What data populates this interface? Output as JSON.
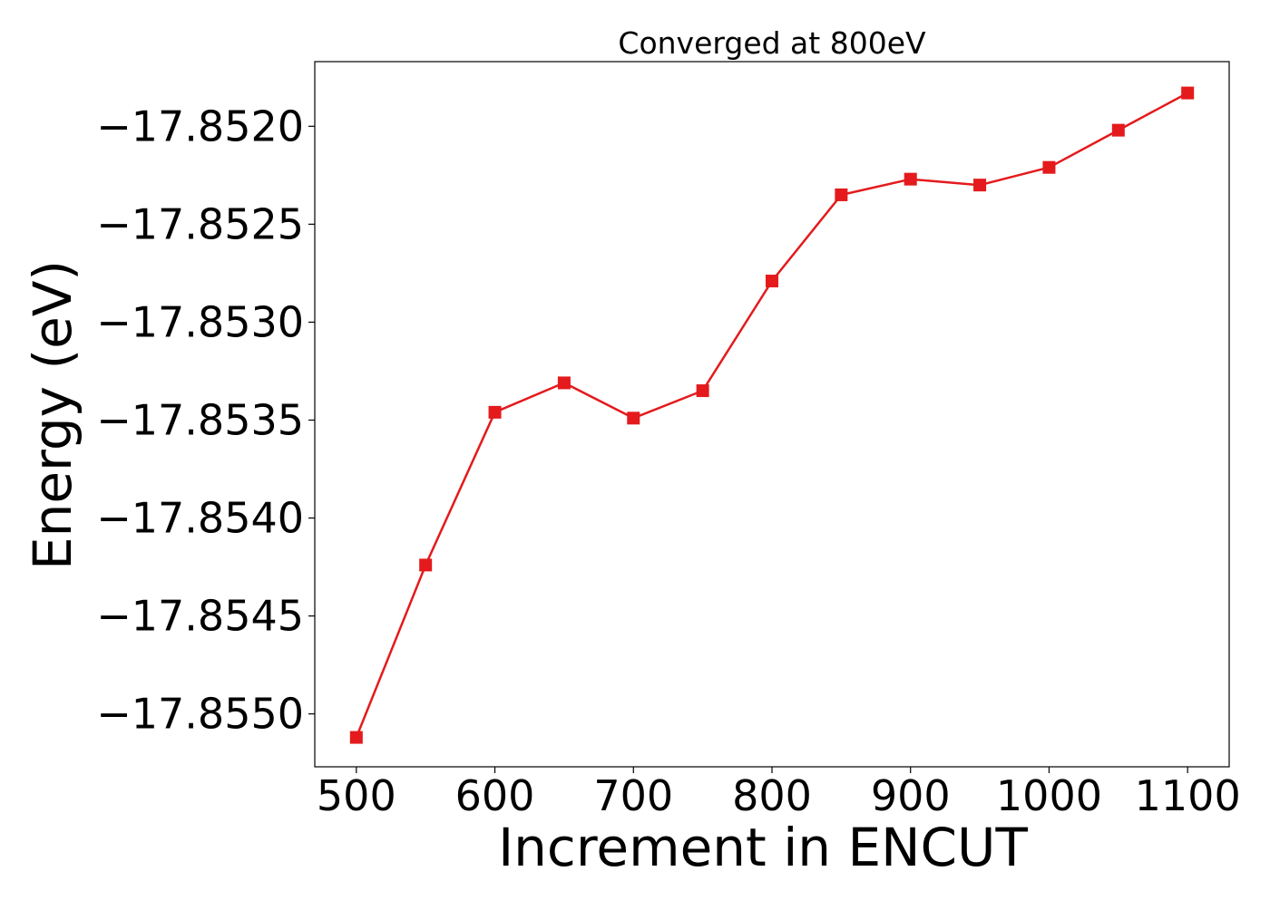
{
  "chart_data": {
    "type": "line",
    "title": "Converged at 800eV",
    "xlabel": "Increment in ENCUT",
    "ylabel": "Energy (eV)",
    "x": [
      500,
      550,
      600,
      650,
      700,
      750,
      800,
      850,
      900,
      950,
      1000,
      1050,
      1100
    ],
    "series": [
      {
        "values": [
          -17.85512,
          -17.85424,
          -17.85346,
          -17.85331,
          -17.85349,
          -17.85335,
          -17.85279,
          -17.85235,
          -17.85227,
          -17.8523,
          -17.85221,
          -17.85202,
          -17.85183
        ],
        "color": "#e41a1c",
        "marker": "square"
      }
    ],
    "xlim": [
      470,
      1130
    ],
    "ylim": [
      -17.85527,
      -17.85167
    ],
    "xticks": [
      500,
      600,
      700,
      800,
      900,
      1000,
      1100
    ],
    "xtick_labels": [
      "500",
      "600",
      "700",
      "800",
      "900",
      "1000",
      "1100"
    ],
    "yticks": [
      -17.855,
      -17.8545,
      -17.854,
      -17.8535,
      -17.853,
      -17.8525,
      -17.852
    ],
    "ytick_labels": [
      "−17.8550",
      "−17.8545",
      "−17.8540",
      "−17.8535",
      "−17.8530",
      "−17.8525",
      "−17.8520"
    ],
    "grid": false,
    "legend": "none"
  }
}
